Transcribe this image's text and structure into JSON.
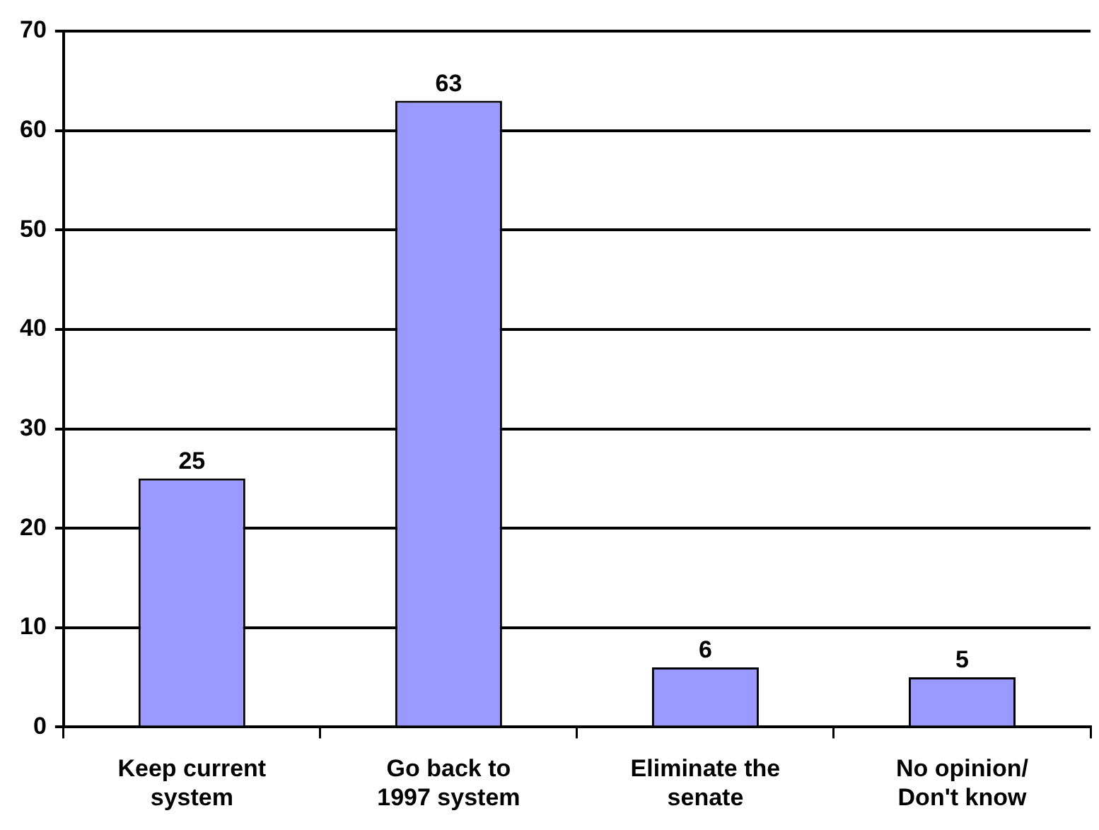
{
  "chart_data": {
    "type": "bar",
    "categories": [
      "Keep current system",
      "Go back to 1997 system",
      "Eliminate the senate",
      "No opinion/ Don't know"
    ],
    "values": [
      25,
      63,
      6,
      5
    ],
    "color": "#9999ff",
    "ylim": [
      0,
      70
    ],
    "yticks": [
      0,
      10,
      20,
      30,
      40,
      50,
      60,
      70
    ],
    "grid": "y",
    "data_labels": true,
    "legend": false
  }
}
